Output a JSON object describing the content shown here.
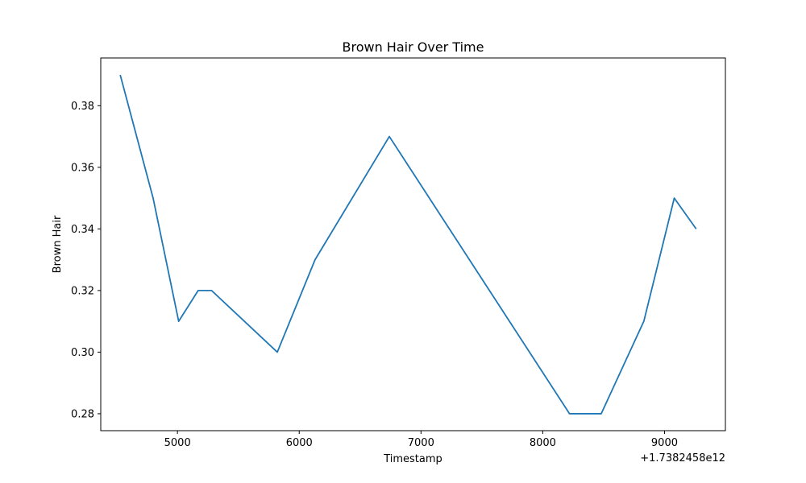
{
  "chart_data": {
    "type": "line",
    "title": "Brown Hair Over Time",
    "xlabel": "Timestamp",
    "ylabel": "Brown Hair",
    "x_offset_label": "+1.7382458e12",
    "x_tick_labels": [
      "5000",
      "6000",
      "7000",
      "8000",
      "9000"
    ],
    "y_tick_labels": [
      "0.28",
      "0.30",
      "0.32",
      "0.34",
      "0.36",
      "0.38"
    ],
    "xlim": [
      1738245804370,
      1738245809500
    ],
    "ylim": [
      0.2745,
      0.3955
    ],
    "line_color": "#1f77b4",
    "grid": false,
    "series": [
      {
        "x": [
          1738245804530,
          1738245804800,
          1738245805010,
          1738245805170,
          1738245805280,
          1738245805820,
          1738245806130,
          1738245806740,
          1738245808220,
          1738245808480,
          1738245808830,
          1738245809080,
          1738245809260
        ],
        "values": [
          0.39,
          0.35,
          0.31,
          0.32,
          0.32,
          0.3,
          0.33,
          0.37,
          0.28,
          0.28,
          0.31,
          0.35,
          0.34
        ]
      }
    ]
  }
}
